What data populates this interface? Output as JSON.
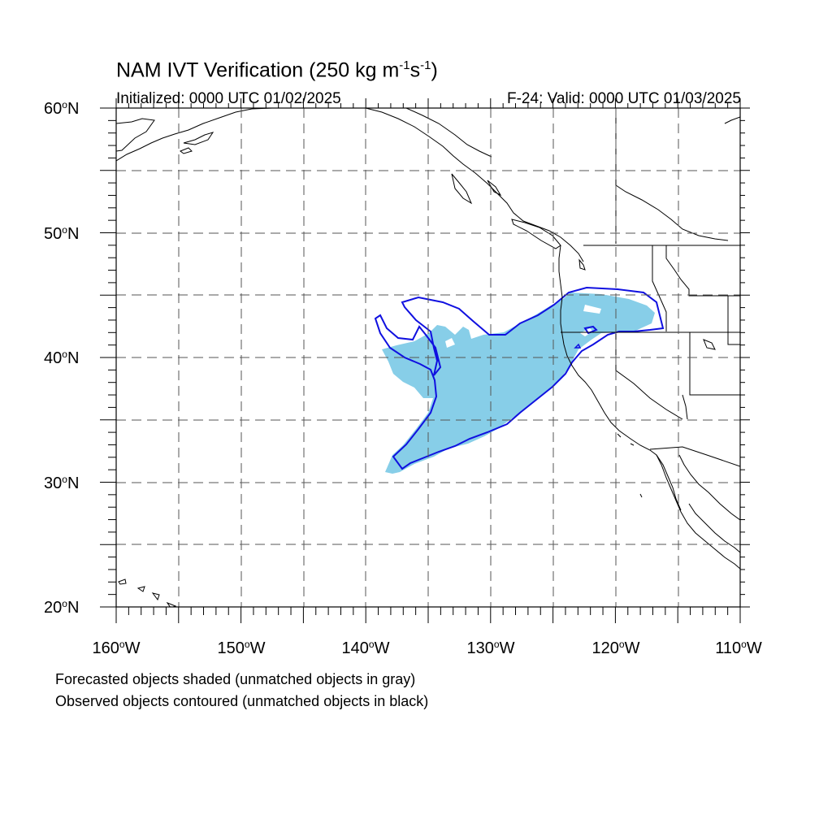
{
  "title": {
    "main_prefix": "NAM IVT Verification (250 kg m",
    "exp1": "-1",
    "mid": "s",
    "exp2": "-1",
    "suffix": ")"
  },
  "initialized": "Initialized: 0000 UTC 01/02/2025",
  "valid": "F-24: Valid: 0000 UTC 01/03/2025",
  "notes": {
    "forecast": "Forecasted objects shaded (unmatched objects in gray)",
    "observed": "Observed objects contoured (unmatched objects in black)"
  },
  "axes": {
    "lat_labels": [
      {
        "num": "60",
        "hemi": "N"
      },
      {
        "num": "50",
        "hemi": "N"
      },
      {
        "num": "40",
        "hemi": "N"
      },
      {
        "num": "30",
        "hemi": "N"
      },
      {
        "num": "20",
        "hemi": "N"
      }
    ],
    "lon_labels": [
      {
        "num": "160",
        "hemi": "W"
      },
      {
        "num": "150",
        "hemi": "W"
      },
      {
        "num": "140",
        "hemi": "W"
      },
      {
        "num": "130",
        "hemi": "W"
      },
      {
        "num": "120",
        "hemi": "W"
      },
      {
        "num": "110",
        "hemi": "W"
      }
    ],
    "lat_range": [
      20,
      60
    ],
    "lon_range": [
      -160,
      -110
    ],
    "grid_interval_deg": 5
  },
  "colors": {
    "forecast_fill": "#87CEE8",
    "observed_contour": "#1010E0",
    "coastline": "#000000",
    "grid": "#555555"
  },
  "objects": {
    "forecast_object": {
      "label": "forecast IVT object",
      "status": "matched"
    },
    "observed_object": {
      "label": "observed IVT object",
      "status": "matched"
    }
  }
}
